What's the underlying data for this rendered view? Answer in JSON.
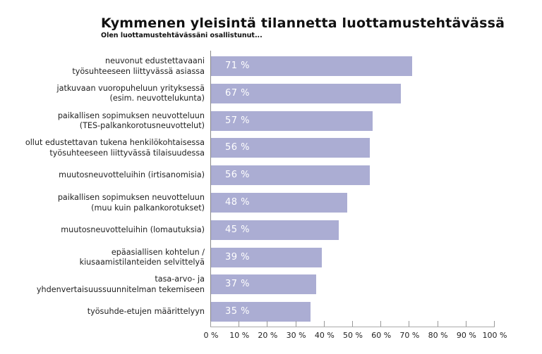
{
  "header": {
    "title": "Kymmenen yleisintä tilannetta luottamustehtävässä",
    "subtitle": "Olen luottamustehtävässäni osallistunut..."
  },
  "colors": {
    "bar": "#abadd3",
    "bar_text": "#ffffff",
    "axis": "#888888"
  },
  "rows": [
    {
      "label_line1": "neuvonut edustettavaani",
      "label_line2": "työsuhteeseen liittyvässä asiassa",
      "value": 71,
      "value_label": "71 %"
    },
    {
      "label_line1": "jatkuvaan vuoropuheluun yrityksessä",
      "label_line2": "(esim. neuvottelukunta)",
      "value": 67,
      "value_label": "67 %"
    },
    {
      "label_line1": "paikallisen sopimuksen neuvotteluun",
      "label_line2": "(TES-palkankorotusneuvottelut)",
      "value": 57,
      "value_label": "57 %"
    },
    {
      "label_line1": "ollut edustettavan tukena henkilökohtaisessa",
      "label_line2": "työsuhteeseen liittyvässä tilaisuudessa",
      "value": 56,
      "value_label": "56 %"
    },
    {
      "label_line1": "muutosneuvotteluihin (irtisanomisia)",
      "label_line2": "",
      "value": 56,
      "value_label": "56 %"
    },
    {
      "label_line1": "paikallisen sopimuksen neuvotteluun",
      "label_line2": "(muu kuin palkankorotukset)",
      "value": 48,
      "value_label": "48 %"
    },
    {
      "label_line1": "muutosneuvotteluihin (lomautuksia)",
      "label_line2": "",
      "value": 45,
      "value_label": "45 %"
    },
    {
      "label_line1": "epäasiallisen kohtelun /",
      "label_line2": "kiusaamistilanteiden selvittelyä",
      "value": 39,
      "value_label": "39 %"
    },
    {
      "label_line1": "tasa-arvo- ja",
      "label_line2": "yhdenvertaisuussuunnitelman tekemiseen",
      "value": 37,
      "value_label": "37 %"
    },
    {
      "label_line1": "työsuhde-etujen määrittelyyn",
      "label_line2": "",
      "value": 35,
      "value_label": "35 %"
    }
  ],
  "x_axis": {
    "ticks": [
      "0 %",
      "10 %",
      "20 %",
      "30 %",
      "40 %",
      "50 %",
      "60 %",
      "70 %",
      "80 %",
      "90 %",
      "100 %"
    ]
  },
  "chart_data": {
    "type": "bar",
    "orientation": "horizontal",
    "title": "Kymmenen yleisintä tilannetta luottamustehtävässä",
    "subtitle": "Olen luottamustehtävässäni osallistunut...",
    "categories": [
      "neuvonut edustettavaani työsuhteeseen liittyvässä asiassa",
      "jatkuvaan vuoropuheluun yrityksessä (esim. neuvottelukunta)",
      "paikallisen sopimuksen neuvotteluun (TES-palkankorotusneuvottelut)",
      "ollut edustettavan tukena henkilökohtaisessa työsuhteeseen liittyvässä tilaisuudessa",
      "muutosneuvotteluihin (irtisanomisia)",
      "paikallisen sopimuksen neuvotteluun (muu kuin palkankorotukset)",
      "muutosneuvotteluihin (lomautuksia)",
      "epäasiallisen kohtelun / kiusaamistilanteiden selvittelyä",
      "tasa-arvo- ja yhdenvertaisuussuunnitelman tekemiseen",
      "työsuhde-etujen määrittelyyn"
    ],
    "values": [
      71,
      67,
      57,
      56,
      56,
      48,
      45,
      39,
      37,
      35
    ],
    "xlabel": "",
    "ylabel": "",
    "xlim": [
      0,
      100
    ],
    "x_tick_labels": [
      "0 %",
      "10 %",
      "20 %",
      "30 %",
      "40 %",
      "50 %",
      "60 %",
      "70 %",
      "80 %",
      "90 %",
      "100 %"
    ],
    "unit": "%",
    "data_labels": true,
    "grid": false,
    "legend": null
  }
}
